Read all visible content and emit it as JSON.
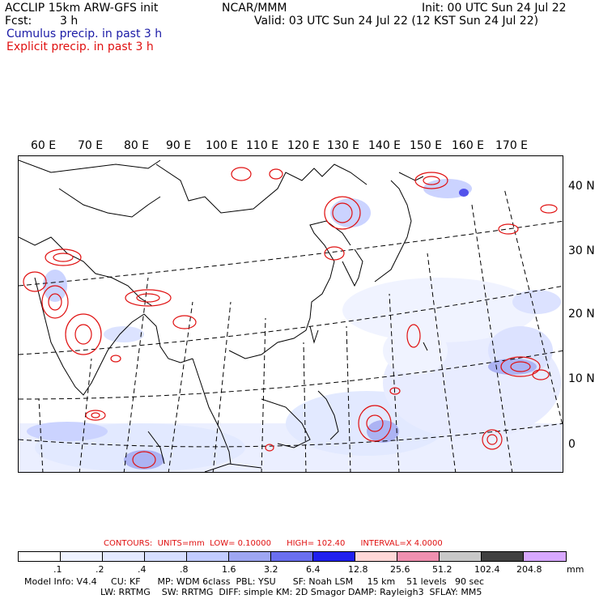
{
  "header": {
    "model": "ACCLIP 15km ARW-GFS init",
    "org": "NCAR/MMM",
    "init": "Init: 00 UTC Sun 24 Jul 22",
    "fcst_label": "Fcst:",
    "fcst_value": "3 h",
    "valid": "Valid: 03 UTC Sun 24 Jul 22 (12 KST Sun 24 Jul 22)",
    "cumulus": "Cumulus precip. in past 3 h",
    "explicit": "Explicit precip. in past 3 h"
  },
  "colors": {
    "cumulus_text": "#1a1aa6",
    "explicit_text": "#e01010",
    "contour": "#e01010",
    "coast": "#000000",
    "grid": "#000000",
    "precip_light": "#dde6ff",
    "precip_mid": "#9ea6f2",
    "precip_strong": "#3535e8"
  },
  "longitudes": [
    "60 E",
    "70 E",
    "80 E",
    "90 E",
    "100 E",
    "110 E",
    "120 E",
    "130 E",
    "140 E",
    "150 E",
    "160 E",
    "170 E"
  ],
  "latitudes": [
    "40 N",
    "30 N",
    "20 N",
    "10 N",
    "0"
  ],
  "contours": {
    "label": "CONTOURS:",
    "units": "UNITS=mm",
    "low": "LOW= 0.10000",
    "high": "HIGH= 102.40",
    "interval": "INTERVAL=X 4.0000"
  },
  "legend": {
    "ticks": [
      ".1",
      ".2",
      ".4",
      ".8",
      "1.6",
      "3.2",
      "6.4",
      "12.8",
      "25.6",
      "51.2",
      "102.4",
      "204.8"
    ],
    "unit": "mm",
    "colors": [
      "#ffffff",
      "#eef2ff",
      "#e4e9ff",
      "#d6deff",
      "#c2ccff",
      "#9ea6f2",
      "#6a6ff0",
      "#2020ee",
      "#ffd8d8",
      "#f090b0",
      "#c8c8c8",
      "#404040",
      "#d8a8ff"
    ]
  },
  "footer": {
    "line1": "Model Info: V4.4     CU: KF      MP: WDM 6class  PBL: YSU      SF: Noah LSM     15 km    51 levels   90 sec",
    "line2": "LW: RRTMG    SW: RRTMG  DIFF: simple KM: 2D Smagor DAMP: Rayleigh3  SFLAY: MM5"
  }
}
